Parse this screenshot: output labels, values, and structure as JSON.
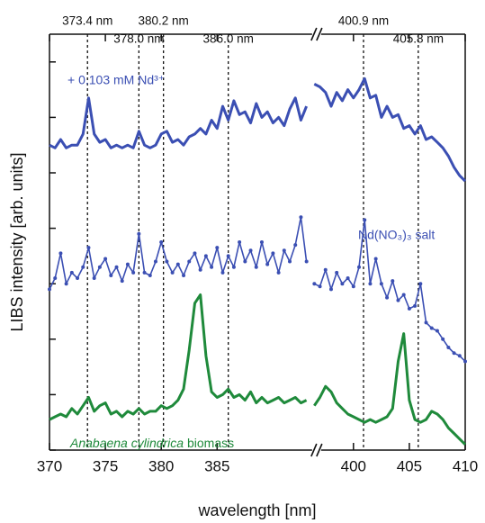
{
  "chart_data": {
    "type": "line",
    "xlabel": "wavelength [nm]",
    "ylabel": "LIBS intensity [arb. units]",
    "xlim": [
      370,
      410
    ],
    "xbreak": [
      393.5,
      396.3
    ],
    "xticks": [
      370,
      375,
      380,
      385,
      400,
      405,
      410
    ],
    "ylim": [
      0,
      7.5
    ],
    "yticks": [
      0,
      1,
      2,
      3,
      4,
      5,
      6,
      7
    ],
    "vlines": [
      {
        "value": 373.4,
        "label": "373.4 nm"
      },
      {
        "value": 378.0,
        "label": "378.0 nm"
      },
      {
        "value": 380.2,
        "label": "380.2 nm"
      },
      {
        "value": 386.0,
        "label": "386.0 nm"
      },
      {
        "value": 400.9,
        "label": "400.9 nm"
      },
      {
        "value": 405.8,
        "label": "405.8 nm"
      }
    ],
    "x": [
      370,
      370.5,
      371,
      371.5,
      372,
      372.5,
      373,
      373.5,
      374,
      374.5,
      375,
      375.5,
      376,
      376.5,
      377,
      377.5,
      378,
      378.5,
      379,
      379.5,
      380,
      380.5,
      381,
      381.5,
      382,
      382.5,
      383,
      383.5,
      384,
      384.5,
      385,
      385.5,
      386,
      386.5,
      387,
      387.5,
      388,
      388.5,
      389,
      389.5,
      390,
      390.5,
      391,
      391.5,
      392,
      392.5,
      393,
      395,
      396.5,
      397,
      397.5,
      398,
      398.5,
      399,
      399.5,
      400,
      400.5,
      401,
      401.5,
      402,
      402.5,
      403,
      403.5,
      404,
      404.5,
      405,
      405.5,
      406,
      406.5,
      407,
      407.5,
      408,
      408.5,
      409,
      409.5,
      410
    ],
    "series": [
      {
        "name": "+ 0.103 mM Nd³⁺",
        "color": "#3b4fb3",
        "markers": false,
        "values": [
          5.5,
          5.45,
          5.6,
          5.45,
          5.5,
          5.5,
          5.7,
          6.35,
          5.7,
          5.55,
          5.6,
          5.45,
          5.5,
          5.45,
          5.5,
          5.45,
          5.75,
          5.5,
          5.45,
          5.5,
          5.7,
          5.75,
          5.55,
          5.6,
          5.5,
          5.65,
          5.7,
          5.8,
          5.7,
          5.95,
          5.8,
          6.2,
          5.95,
          6.3,
          6.05,
          6.1,
          5.9,
          6.25,
          6.0,
          6.1,
          5.9,
          6.0,
          5.85,
          6.15,
          6.35,
          5.95,
          6.2,
          null,
          6.6,
          6.55,
          6.45,
          6.2,
          6.45,
          6.3,
          6.5,
          6.35,
          6.5,
          6.7,
          6.35,
          6.4,
          6.0,
          6.2,
          6.0,
          6.05,
          5.8,
          5.85,
          5.7,
          5.85,
          5.6,
          5.65,
          5.55,
          5.45,
          5.3,
          5.1,
          4.95,
          4.85
        ]
      },
      {
        "name": "Nd(NO₃)₃ salt",
        "color": "#3b4fb3",
        "markers": true,
        "values": [
          2.9,
          3.1,
          3.55,
          3.0,
          3.2,
          3.1,
          3.3,
          3.65,
          3.1,
          3.3,
          3.45,
          3.15,
          3.3,
          3.05,
          3.35,
          3.2,
          3.9,
          3.2,
          3.15,
          3.4,
          3.75,
          3.4,
          3.2,
          3.35,
          3.15,
          3.4,
          3.55,
          3.25,
          3.5,
          3.3,
          3.65,
          3.2,
          3.5,
          3.3,
          3.75,
          3.4,
          3.6,
          3.3,
          3.75,
          3.35,
          3.55,
          3.2,
          3.6,
          3.4,
          3.7,
          4.2,
          3.4,
          null,
          3.0,
          2.95,
          3.25,
          2.9,
          3.2,
          3.0,
          3.1,
          2.95,
          3.3,
          4.15,
          3.0,
          3.45,
          3.0,
          2.75,
          3.05,
          2.7,
          2.8,
          2.55,
          2.6,
          3.0,
          2.3,
          2.2,
          2.15,
          2.0,
          1.85,
          1.75,
          1.7,
          1.6
        ]
      },
      {
        "name": "Anabaena cylindrica biomass",
        "color": "#1f8a3b",
        "markers": false,
        "values": [
          0.55,
          0.6,
          0.65,
          0.6,
          0.75,
          0.65,
          0.8,
          0.95,
          0.7,
          0.8,
          0.85,
          0.65,
          0.7,
          0.6,
          0.7,
          0.65,
          0.75,
          0.65,
          0.7,
          0.7,
          0.8,
          0.75,
          0.8,
          0.9,
          1.1,
          1.8,
          2.65,
          2.8,
          1.7,
          1.05,
          0.95,
          1.0,
          1.1,
          0.95,
          1.0,
          0.9,
          1.05,
          0.85,
          0.95,
          0.85,
          0.9,
          0.95,
          0.85,
          0.9,
          0.95,
          0.85,
          0.9,
          null,
          0.8,
          0.95,
          1.15,
          1.05,
          0.85,
          0.75,
          0.65,
          0.6,
          0.55,
          0.5,
          0.55,
          0.5,
          0.55,
          0.6,
          0.75,
          1.6,
          2.1,
          0.9,
          0.55,
          0.5,
          0.55,
          0.7,
          0.65,
          0.55,
          0.4,
          0.3,
          0.2,
          0.1
        ]
      }
    ]
  }
}
